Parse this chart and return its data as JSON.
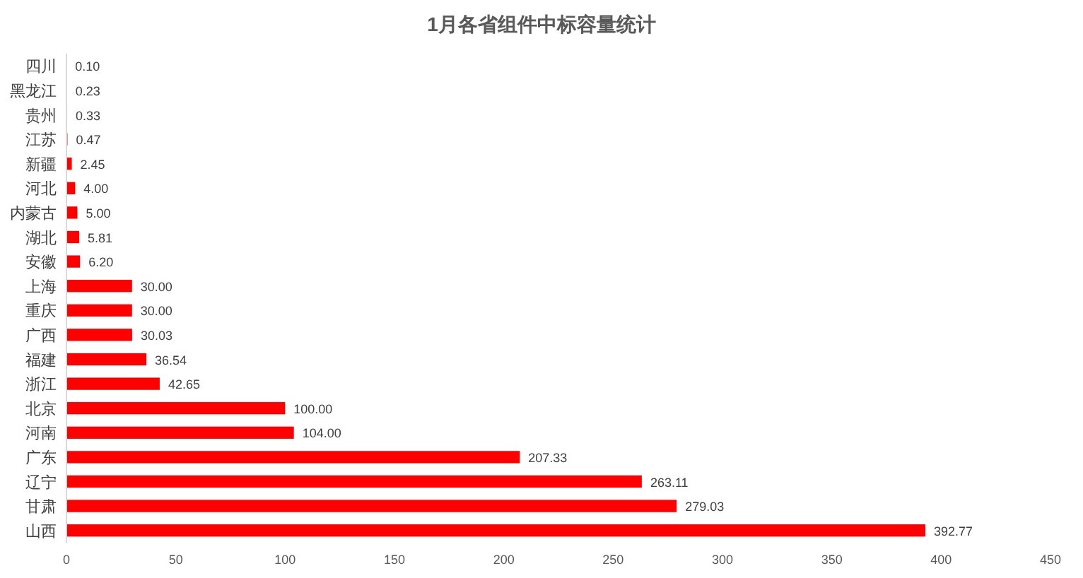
{
  "chart_data": {
    "type": "bar",
    "orientation": "horizontal",
    "title": "1月各省组件中标容量统计",
    "categories": [
      "四川",
      "黑龙江",
      "贵州",
      "江苏",
      "新疆",
      "河北",
      "内蒙古",
      "湖北",
      "安徽",
      "上海",
      "重庆",
      "广西",
      "福建",
      "浙江",
      "北京",
      "河南",
      "广东",
      "辽宁",
      "甘肃",
      "山西"
    ],
    "values": [
      0.1,
      0.23,
      0.33,
      0.47,
      2.45,
      4.0,
      5.0,
      5.81,
      6.2,
      30.0,
      30.0,
      30.03,
      36.54,
      42.65,
      100.0,
      104.0,
      207.33,
      263.11,
      279.03,
      392.77
    ],
    "value_labels": [
      "0.10",
      "0.23",
      "0.33",
      "0.47",
      "2.45",
      "4.00",
      "5.00",
      "5.81",
      "6.20",
      "30.00",
      "30.00",
      "30.03",
      "36.54",
      "42.65",
      "100.00",
      "104.00",
      "207.33",
      "263.11",
      "279.03",
      "392.77"
    ],
    "color": "#ff0000",
    "xlim": [
      0,
      450
    ],
    "xticks": [
      0,
      50,
      100,
      150,
      200,
      250,
      300,
      350,
      400,
      450
    ],
    "grid": false
  }
}
